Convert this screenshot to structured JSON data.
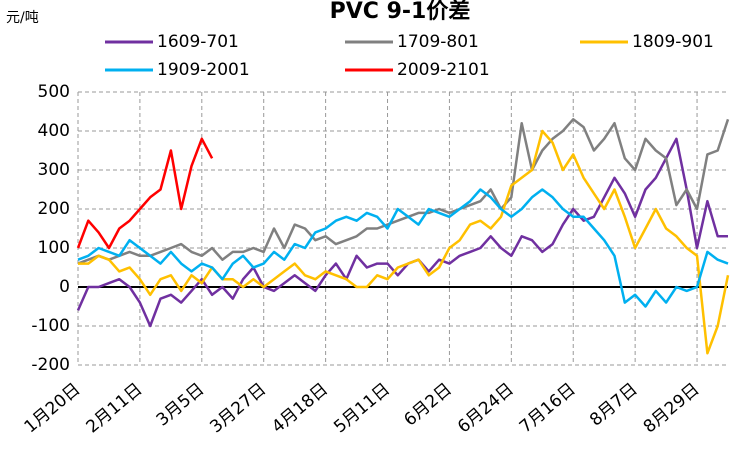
{
  "chart_data": {
    "type": "line",
    "title": "PVC 9-1价差",
    "y_label": "元/吨",
    "categories": [
      "1月20日",
      null,
      null,
      null,
      null,
      null,
      "2月11日",
      null,
      null,
      null,
      null,
      null,
      "3月5日",
      null,
      null,
      null,
      null,
      null,
      "3月27日",
      null,
      null,
      null,
      null,
      null,
      "4月18日",
      null,
      null,
      null,
      null,
      null,
      "5月11日",
      null,
      null,
      null,
      null,
      null,
      "6月2日",
      null,
      null,
      null,
      null,
      null,
      "6月24日",
      null,
      null,
      null,
      null,
      null,
      "7月16日",
      null,
      null,
      null,
      null,
      null,
      "8月7日",
      null,
      null,
      null,
      null,
      null,
      "8月29日",
      null,
      null,
      null
    ],
    "series": [
      {
        "name": "1609-701",
        "color": "#7030a0",
        "values": [
          -60,
          0,
          0,
          10,
          20,
          0,
          -40,
          -100,
          -30,
          -20,
          -40,
          -10,
          20,
          -20,
          0,
          -30,
          20,
          50,
          0,
          -10,
          10,
          30,
          10,
          -10,
          30,
          60,
          20,
          80,
          50,
          60,
          60,
          30,
          60,
          70,
          40,
          70,
          60,
          80,
          90,
          100,
          130,
          100,
          80,
          130,
          120,
          90,
          110,
          160,
          200,
          170,
          180,
          230,
          280,
          240,
          180,
          250,
          280,
          330,
          380,
          250,
          100,
          220,
          130,
          130
        ]
      },
      {
        "name": "1709-801",
        "color": "#808080",
        "values": [
          60,
          70,
          80,
          70,
          80,
          90,
          80,
          80,
          90,
          100,
          110,
          90,
          80,
          100,
          70,
          90,
          90,
          100,
          90,
          150,
          100,
          160,
          150,
          120,
          130,
          110,
          120,
          130,
          150,
          150,
          160,
          170,
          180,
          190,
          190,
          200,
          190,
          200,
          210,
          220,
          250,
          200,
          230,
          420,
          300,
          350,
          380,
          400,
          430,
          410,
          350,
          380,
          420,
          330,
          300,
          380,
          350,
          330,
          210,
          250,
          200,
          340,
          350,
          430
        ]
      },
      {
        "name": "1809-901",
        "color": "#ffc000",
        "values": [
          60,
          60,
          80,
          70,
          40,
          50,
          20,
          -20,
          20,
          30,
          -10,
          30,
          10,
          50,
          20,
          20,
          0,
          20,
          0,
          20,
          40,
          60,
          30,
          20,
          40,
          30,
          20,
          0,
          0,
          30,
          20,
          50,
          60,
          70,
          30,
          50,
          100,
          120,
          160,
          170,
          150,
          180,
          260,
          280,
          300,
          400,
          370,
          300,
          340,
          280,
          240,
          200,
          250,
          180,
          100,
          150,
          200,
          150,
          130,
          100,
          80,
          -170,
          -100,
          30
        ]
      },
      {
        "name": "1909-2001",
        "color": "#00b0f0",
        "values": [
          70,
          80,
          100,
          90,
          80,
          120,
          100,
          80,
          60,
          90,
          60,
          40,
          60,
          50,
          20,
          60,
          80,
          50,
          60,
          90,
          70,
          110,
          100,
          140,
          150,
          170,
          180,
          170,
          190,
          180,
          150,
          200,
          180,
          160,
          200,
          190,
          180,
          200,
          220,
          250,
          230,
          200,
          180,
          200,
          230,
          250,
          230,
          200,
          180,
          180,
          150,
          120,
          80,
          -40,
          -20,
          -50,
          -10,
          -40,
          0,
          -10,
          0,
          90,
          70,
          60
        ]
      },
      {
        "name": "2009-2101",
        "color": "#ff0000",
        "values": [
          100,
          170,
          140,
          100,
          150,
          170,
          200,
          230,
          250,
          350,
          200,
          310,
          380,
          330,
          null,
          null,
          null,
          null,
          null,
          null,
          null,
          null,
          null,
          null,
          null,
          null,
          null,
          null,
          null,
          null,
          null,
          null,
          null,
          null,
          null,
          null,
          null,
          null,
          null,
          null,
          null,
          null,
          null,
          null,
          null,
          null,
          null,
          null,
          null,
          null,
          null,
          null,
          null,
          null,
          null,
          null,
          null,
          null,
          null,
          null,
          null,
          null,
          null,
          null
        ]
      }
    ],
    "ylim": [
      -200,
      500
    ],
    "yticks": [
      -200,
      -100,
      0,
      100,
      200,
      300,
      400,
      500
    ],
    "grid": true
  }
}
